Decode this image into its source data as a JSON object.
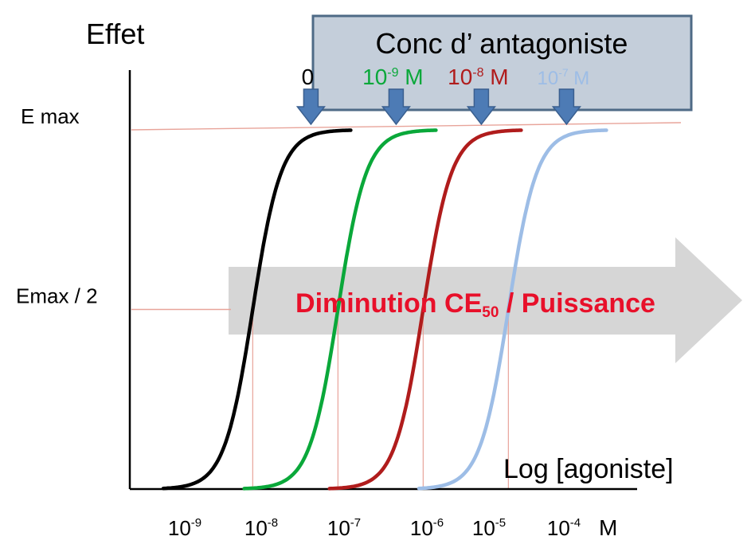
{
  "chart_data": {
    "type": "line",
    "title": "",
    "ylabel": "Effet",
    "xlabel": "Log [agoniste]",
    "x_unit": "M",
    "x_scale": "log10",
    "x_ticks": [
      {
        "base": "10",
        "exp": "-9"
      },
      {
        "base": "10",
        "exp": "-8"
      },
      {
        "base": "10",
        "exp": "-7"
      },
      {
        "base": "10",
        "exp": "-6"
      },
      {
        "base": "10",
        "exp": "-5"
      },
      {
        "base": "10",
        "exp": "-4"
      }
    ],
    "y_ticks": [
      "E max",
      "Emax / 2"
    ],
    "y_tick_values": [
      1,
      0.5
    ],
    "grid": false,
    "legend_title": "Conc d’ antagoniste",
    "series": [
      {
        "name": "0",
        "name_parts": {
          "base": "0",
          "exp": "",
          "unit": ""
        },
        "color": "#000000",
        "ec50_log": -7.95,
        "x_start_log": -9,
        "x_end_log": -6.8
      },
      {
        "name": "10-9 M",
        "name_parts": {
          "base": "10",
          "exp": "-9",
          "unit": " M"
        },
        "color": "#0aa83a",
        "ec50_log": -6.95,
        "x_start_log": -8.05,
        "x_end_log": -5.8
      },
      {
        "name": "10-8 M",
        "name_parts": {
          "base": "10",
          "exp": "-8",
          "unit": " M"
        },
        "color": "#b01c1c",
        "ec50_log": -5.95,
        "x_start_log": -7.05,
        "x_end_log": -4.8
      },
      {
        "name": "10-7 M",
        "name_parts": {
          "base": "10",
          "exp": "-7",
          "unit": " M"
        },
        "color": "#9dbde6",
        "ec50_log": -4.95,
        "x_start_log": -6.0,
        "x_end_log": -3.8
      }
    ],
    "annotation": {
      "text_main": "Diminution CE",
      "text_sub": "50",
      "text_tail": " / Puissance",
      "color": "#e8102a"
    },
    "colors": {
      "legend_box_fill": "#c4ceda",
      "legend_box_stroke": "#4e6a86",
      "legend_arrow": "#4d7bb5",
      "arrow_fill": "#d6d6d6",
      "ref_line": "#e8a49a"
    }
  }
}
